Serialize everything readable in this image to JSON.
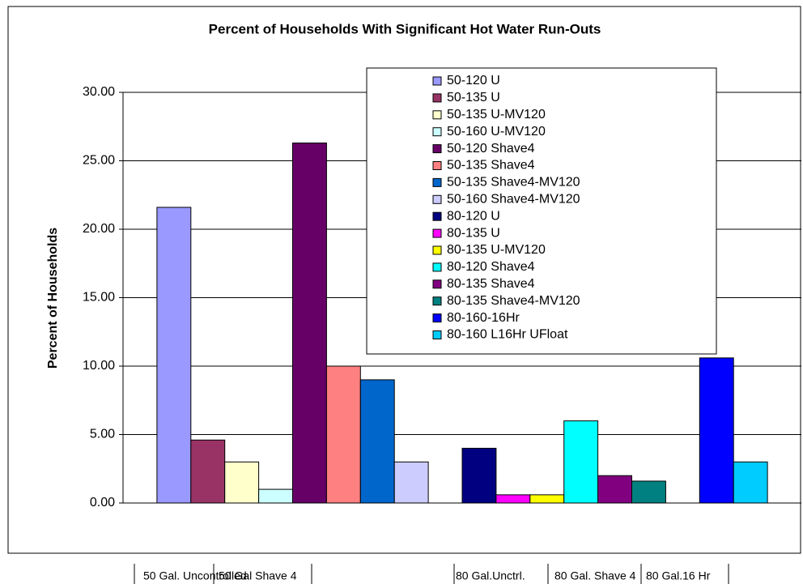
{
  "chart_data": {
    "type": "bar",
    "title": "Percent of Households With Significant Hot Water Run-Outs",
    "y_label": "Percent of Households",
    "ylim": [
      0,
      30
    ],
    "yticks": [
      {
        "value": 0,
        "label": "0.00"
      },
      {
        "value": 5,
        "label": "5.00"
      },
      {
        "value": 10,
        "label": "10.00"
      },
      {
        "value": 15,
        "label": "15.00"
      },
      {
        "value": 20,
        "label": "20.00"
      },
      {
        "value": 25,
        "label": "25.00"
      },
      {
        "value": 30,
        "label": "30.00"
      }
    ],
    "grid": true,
    "legend": "upper right",
    "series": [
      {
        "name": "50-120 U",
        "color": "#9999ff",
        "values": [
          21.6
        ]
      },
      {
        "name": "50-135 U",
        "color": "#993366",
        "values": [
          4.6
        ]
      },
      {
        "name": "50-135 U-MV120",
        "color": "#ffffcc",
        "values": [
          3.0
        ]
      },
      {
        "name": "50-160 U-MV120",
        "color": "#ccffff",
        "values": [
          1.0
        ]
      },
      {
        "name": "50-120 Shave4",
        "color": "#660066",
        "values": [
          26.3
        ]
      },
      {
        "name": "50-135 Shave4",
        "color": "#ff8080",
        "values": [
          10.0
        ]
      },
      {
        "name": "50-135 Shave4-MV120",
        "color": "#0066cc",
        "values": [
          9.0
        ]
      },
      {
        "name": "50-160 Shave4-MV120",
        "color": "#ccccff",
        "values": [
          3.0
        ]
      },
      {
        "name": "80-120 U",
        "color": "#000080",
        "values": [
          4.0
        ]
      },
      {
        "name": "80-135 U",
        "color": "#ff00ff",
        "values": [
          0.6
        ]
      },
      {
        "name": "80-135 U-MV120",
        "color": "#ffff00",
        "values": [
          0.6
        ]
      },
      {
        "name": "80-120 Shave4",
        "color": "#00ffff",
        "values": [
          6.0
        ]
      },
      {
        "name": "80-135 Shave4",
        "color": "#800080",
        "values": [
          2.0
        ]
      },
      {
        "name": "80-135 Shave4-MV120",
        "color": "#008080",
        "values": [
          1.6
        ]
      },
      {
        "name": "80-160-16Hr",
        "color": "#0000ff",
        "values": [
          10.6
        ]
      },
      {
        "name": "80-160 L16Hr UFloat",
        "color": "#00ccff",
        "values": [
          3.0
        ]
      }
    ],
    "group_labels": [
      "50  Gal. Uncontrolled",
      "50 Gal Shave 4",
      "80 Gal.Unctrl.",
      "80 Gal. Shave 4",
      "80 Gal.16 Hr"
    ]
  }
}
